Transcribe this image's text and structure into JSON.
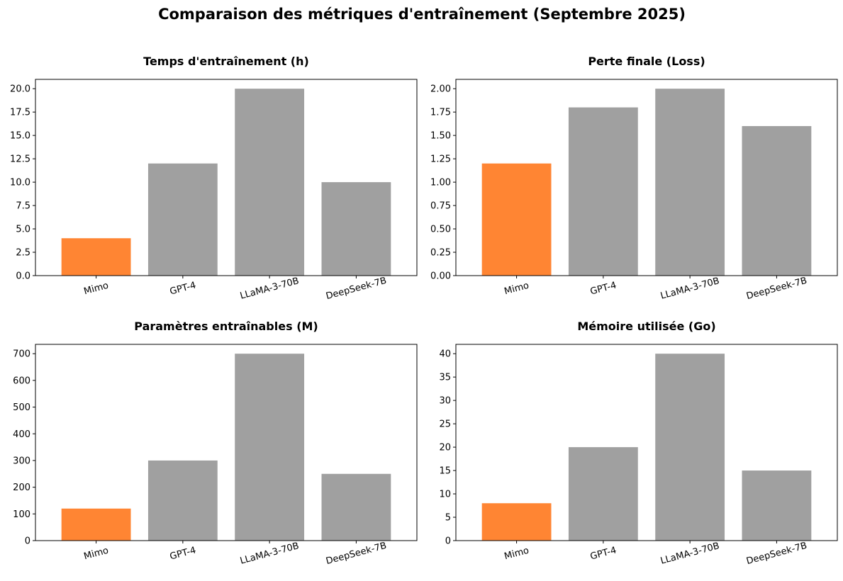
{
  "figure": {
    "title": "Comparaison des métriques d'entraînement (Septembre 2025)"
  },
  "colors": {
    "highlight": "#ff8533",
    "default": "#a0a0a0"
  },
  "chart_data": [
    {
      "type": "bar",
      "title": "Temps d'entraînement (h)",
      "categories": [
        "Mimo",
        "GPT-4",
        "LLaMA-3-70B",
        "DeepSeek-7B"
      ],
      "values": [
        4,
        12,
        20,
        10
      ],
      "highlight_category": "Mimo",
      "ylim": [
        0,
        21
      ],
      "yticks": [
        0,
        2.5,
        5,
        7.5,
        10,
        12.5,
        15,
        17.5,
        20
      ],
      "ytick_labels": [
        "0.0",
        "2.5",
        "5.0",
        "7.5",
        "10.0",
        "12.5",
        "15.0",
        "17.5",
        "20.0"
      ],
      "xtick_rotation_deg": 15,
      "grid": false
    },
    {
      "type": "bar",
      "title": "Perte finale (Loss)",
      "categories": [
        "Mimo",
        "GPT-4",
        "LLaMA-3-70B",
        "DeepSeek-7B"
      ],
      "values": [
        1.2,
        1.8,
        2.0,
        1.6
      ],
      "highlight_category": "Mimo",
      "ylim": [
        0,
        2.1
      ],
      "yticks": [
        0,
        0.25,
        0.5,
        0.75,
        1.0,
        1.25,
        1.5,
        1.75,
        2.0
      ],
      "ytick_labels": [
        "0.00",
        "0.25",
        "0.50",
        "0.75",
        "1.00",
        "1.25",
        "1.50",
        "1.75",
        "2.00"
      ],
      "xtick_rotation_deg": 15,
      "grid": false
    },
    {
      "type": "bar",
      "title": "Paramètres entraînables (M)",
      "categories": [
        "Mimo",
        "GPT-4",
        "LLaMA-3-70B",
        "DeepSeek-7B"
      ],
      "values": [
        120,
        300,
        700,
        250
      ],
      "highlight_category": "Mimo",
      "ylim": [
        0,
        735
      ],
      "yticks": [
        0,
        100,
        200,
        300,
        400,
        500,
        600,
        700
      ],
      "ytick_labels": [
        "0",
        "100",
        "200",
        "300",
        "400",
        "500",
        "600",
        "700"
      ],
      "xtick_rotation_deg": 15,
      "grid": false
    },
    {
      "type": "bar",
      "title": "Mémoire utilisée (Go)",
      "categories": [
        "Mimo",
        "GPT-4",
        "LLaMA-3-70B",
        "DeepSeek-7B"
      ],
      "values": [
        8,
        20,
        40,
        15
      ],
      "highlight_category": "Mimo",
      "ylim": [
        0,
        42
      ],
      "yticks": [
        0,
        5,
        10,
        15,
        20,
        25,
        30,
        35,
        40
      ],
      "ytick_labels": [
        "0",
        "5",
        "10",
        "15",
        "20",
        "25",
        "30",
        "35",
        "40"
      ],
      "xtick_rotation_deg": 15,
      "grid": false
    }
  ]
}
